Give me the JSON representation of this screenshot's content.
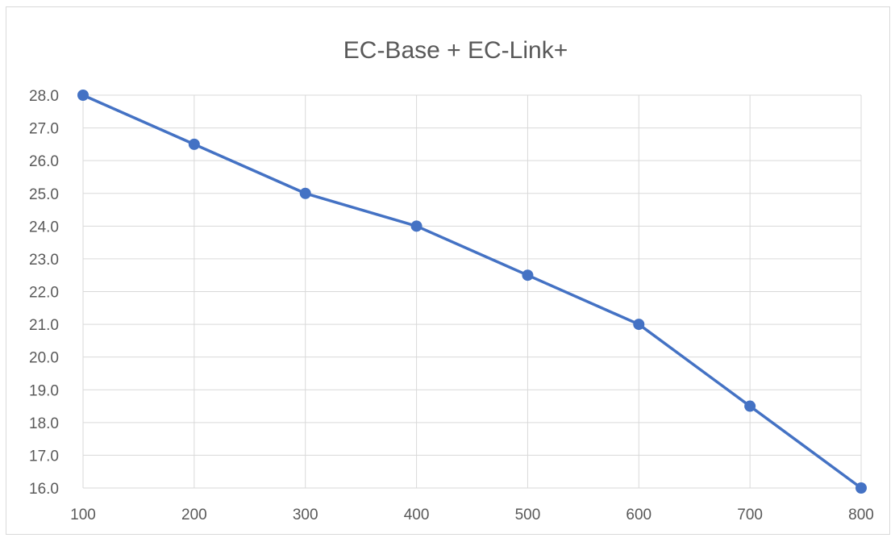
{
  "chart_data": {
    "type": "line",
    "title": "EC-Base + EC-Link+",
    "xlabel": "",
    "ylabel": "",
    "x": [
      100,
      200,
      300,
      400,
      500,
      600,
      700,
      800
    ],
    "series": [
      {
        "values": [
          28.0,
          26.5,
          25.0,
          24.0,
          22.5,
          21.0,
          18.5,
          16.0
        ],
        "color": "#4472c4"
      }
    ],
    "xlim": [
      100,
      800
    ],
    "ylim": [
      16.0,
      28.0
    ],
    "y_ticks": [
      "28.0",
      "27.0",
      "26.0",
      "25.0",
      "24.0",
      "23.0",
      "22.0",
      "21.0",
      "20.0",
      "19.0",
      "18.0",
      "17.0",
      "16.0"
    ],
    "x_ticks": [
      "100",
      "200",
      "300",
      "400",
      "500",
      "600",
      "700",
      "800"
    ],
    "grid": true,
    "legend": "none",
    "markers": true
  }
}
